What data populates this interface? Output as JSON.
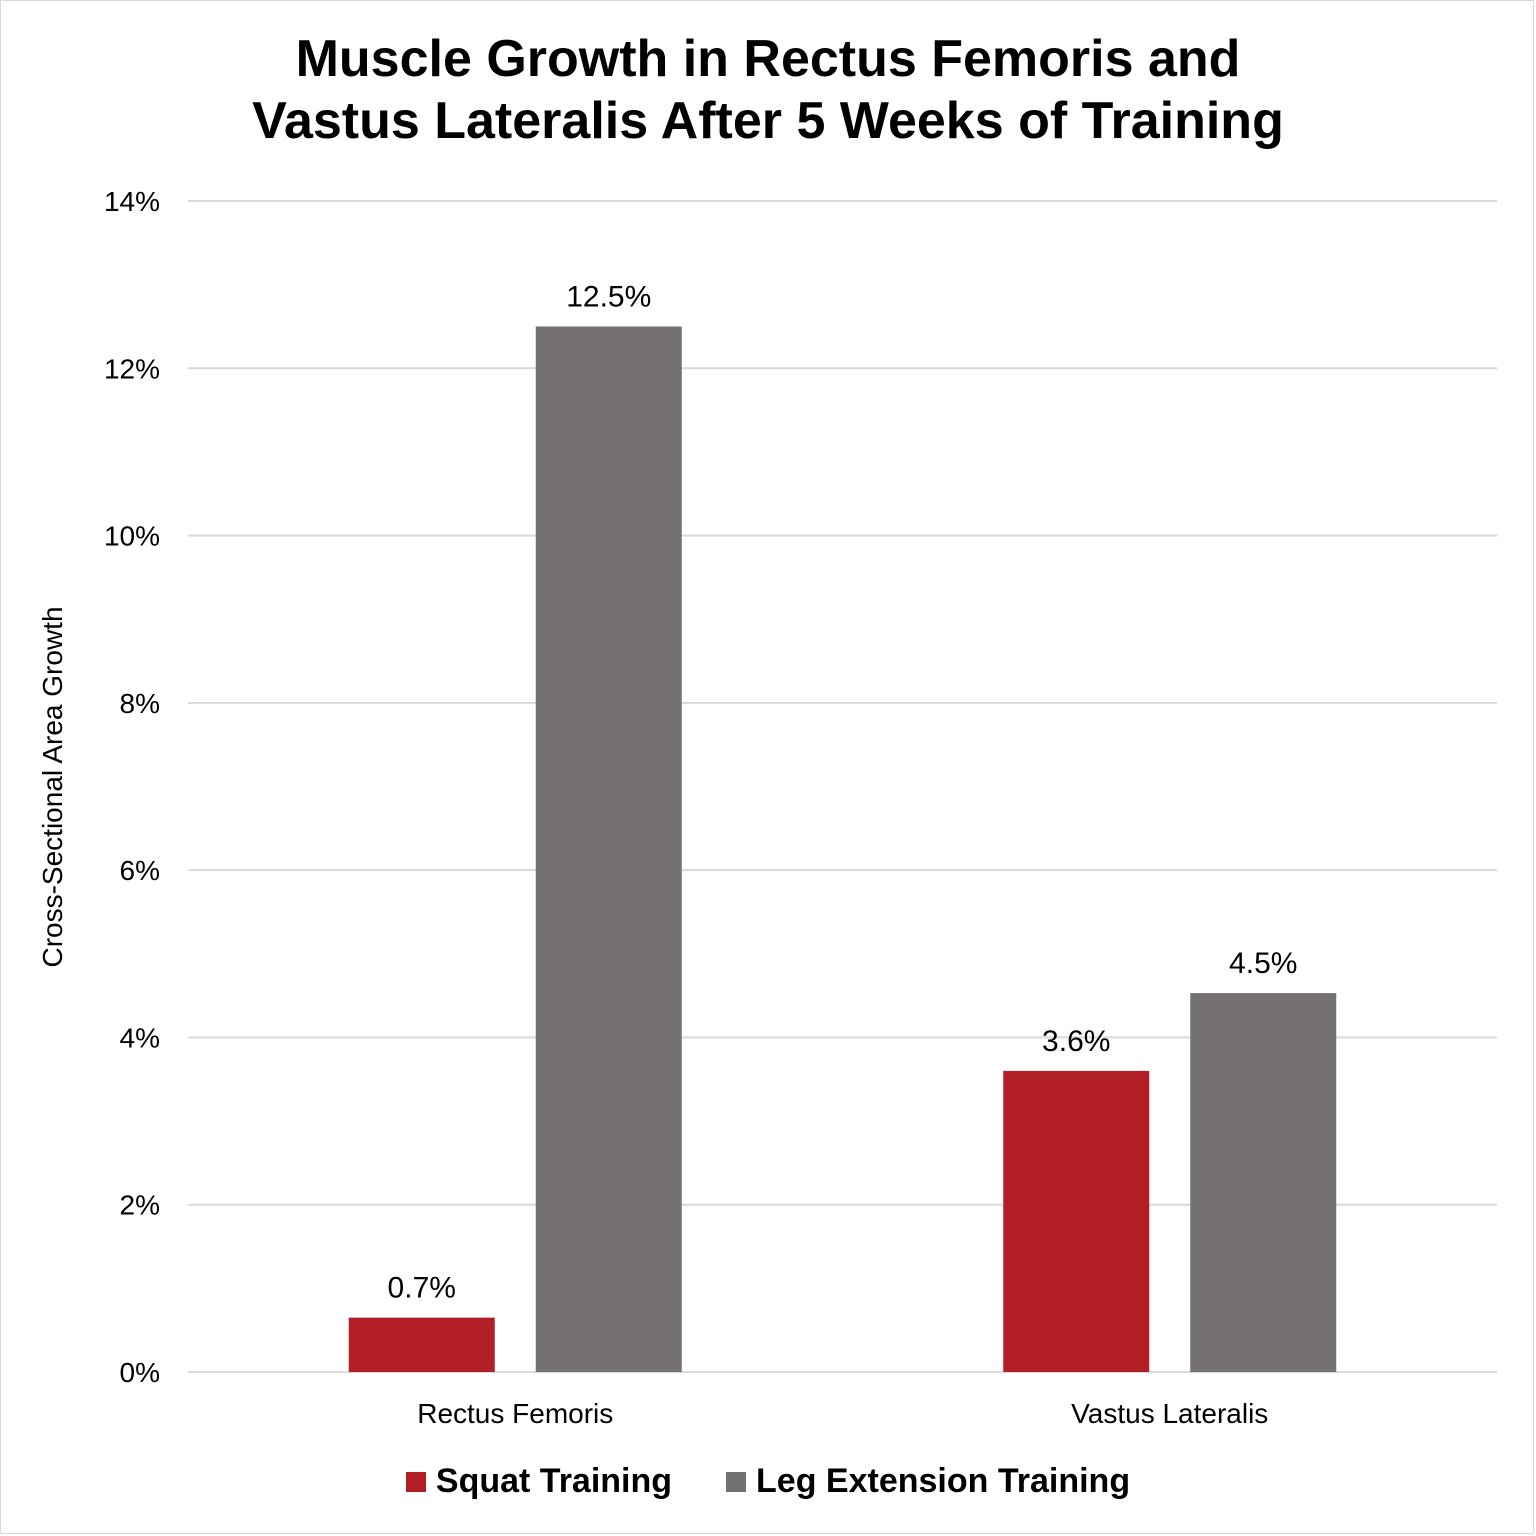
{
  "chart_data": {
    "type": "bar",
    "title_lines": [
      "Muscle Growth in Rectus Femoris and",
      "Vastus Lateralis After 5 Weeks of Training"
    ],
    "ylabel": "Cross-Sectional Area Growth",
    "xlabel": "",
    "categories": [
      "Rectus Femoris",
      "Vastus Lateralis"
    ],
    "ylim": [
      0,
      14
    ],
    "yticks": [
      0,
      2,
      4,
      6,
      8,
      10,
      12,
      14
    ],
    "ytick_labels": [
      "0%",
      "2%",
      "4%",
      "6%",
      "8%",
      "10%",
      "12%",
      "14%"
    ],
    "grid": true,
    "legend_position": "bottom",
    "series": [
      {
        "name": "Squat Training",
        "color": "#b31f27",
        "values": [
          0.65,
          3.6
        ],
        "labels": [
          "0.7%",
          "3.6%"
        ]
      },
      {
        "name": "Leg Extension Training",
        "color": "#767171",
        "values": [
          12.5,
          4.53
        ],
        "labels": [
          "12.5%",
          "4.5%"
        ]
      }
    ]
  }
}
